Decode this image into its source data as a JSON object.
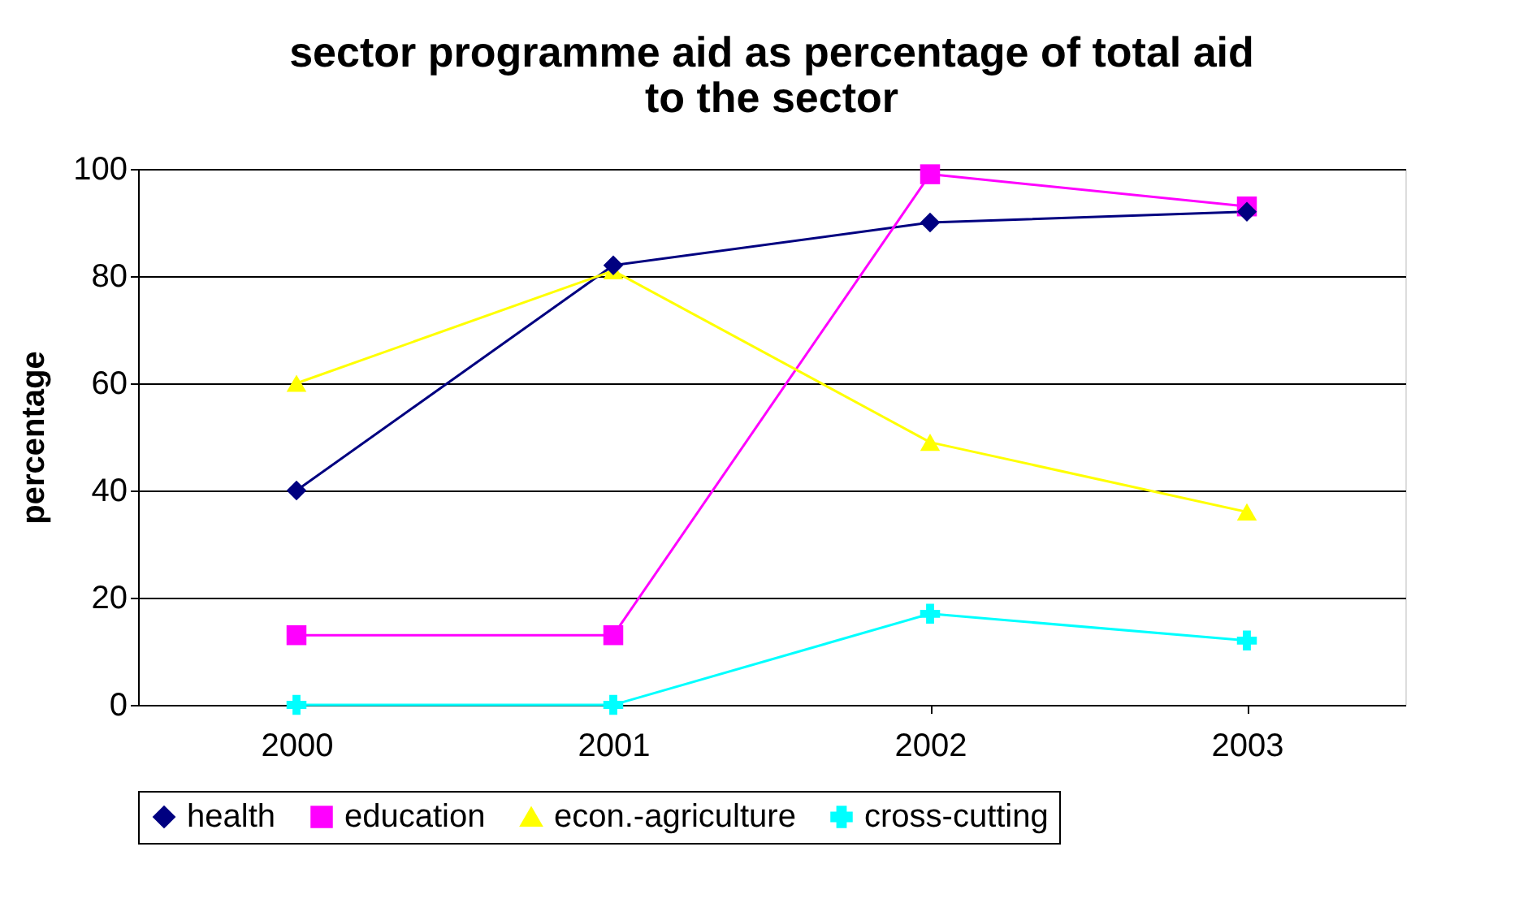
{
  "chart_data": {
    "type": "line",
    "title": "sector programme aid as percentage of total aid\nto the sector",
    "ylabel": "percentage",
    "categories": [
      "2000",
      "2001",
      "2002",
      "2003"
    ],
    "series": [
      {
        "name": "health",
        "color": "#000080",
        "marker": "diamond",
        "values": [
          40,
          82,
          90,
          92
        ]
      },
      {
        "name": "education",
        "color": "#ff00ff",
        "marker": "square",
        "values": [
          13,
          13,
          99,
          93
        ]
      },
      {
        "name": "econ.-agriculture",
        "color": "#ffff00",
        "marker": "triangle",
        "values": [
          60,
          81,
          49,
          36
        ]
      },
      {
        "name": "cross-cutting",
        "color": "#00ffff",
        "marker": "cross",
        "values": [
          0,
          0,
          17,
          12
        ]
      }
    ],
    "ylim": [
      0,
      100
    ],
    "yticks": [
      0,
      20,
      40,
      60,
      80,
      100
    ],
    "grid": "y",
    "legend": "bottom",
    "line_style": "solid"
  }
}
